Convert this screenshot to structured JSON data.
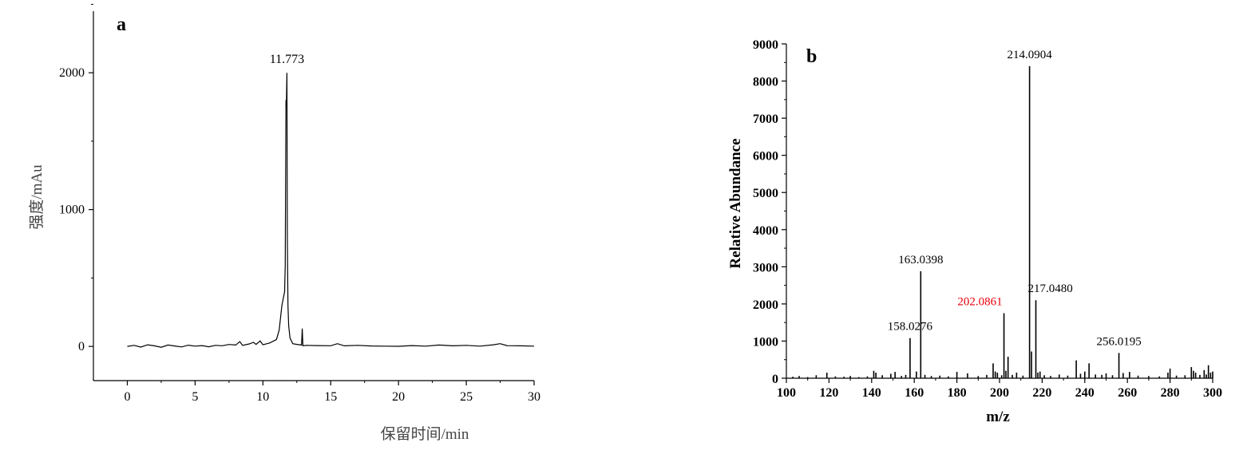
{
  "chart_data": [
    {
      "type": "line",
      "panel_label": "a",
      "xlabel": "保留时间/min",
      "ylabel": "强度/mAu",
      "xlim": [
        -2.5,
        30
      ],
      "ylim": [
        -250,
        2450
      ],
      "xticks": [
        0,
        5,
        10,
        15,
        20,
        25,
        30
      ],
      "xtick_labels": [
        "0",
        "5",
        "10",
        "15",
        "20",
        "25",
        "30"
      ],
      "yticks": [
        0,
        1000,
        2000
      ],
      "ytick_labels": [
        "0",
        "1000",
        "2000"
      ],
      "peak_annotation": {
        "label": "11.773",
        "x": 11.773,
        "y": 2000
      },
      "series": [
        {
          "x": [
            0,
            0.5,
            1,
            1.5,
            2,
            2.5,
            3,
            3.5,
            4,
            4.5,
            5,
            5.5,
            6,
            6.5,
            7,
            7.5,
            8,
            8.3,
            8.5,
            9,
            9.3,
            9.5,
            9.8,
            10,
            10.5,
            11,
            11.2,
            11.4,
            11.5,
            11.6,
            11.65,
            11.7,
            11.73,
            11.773,
            11.8,
            11.85,
            11.9,
            12,
            12.2,
            12.5,
            12.85,
            12.9,
            12.95,
            13.2,
            14,
            15,
            15.5,
            16,
            17,
            18,
            19,
            20,
            21,
            22,
            23,
            24,
            25,
            26,
            27,
            27.5,
            28,
            29,
            30
          ],
          "y": [
            0,
            8,
            -5,
            12,
            4,
            -6,
            10,
            3,
            -4,
            9,
            2,
            6,
            -3,
            8,
            5,
            14,
            10,
            35,
            8,
            18,
            30,
            15,
            40,
            12,
            25,
            50,
            120,
            300,
            350,
            400,
            600,
            1800,
            1750,
            2000,
            800,
            300,
            150,
            60,
            20,
            15,
            10,
            130,
            5,
            8,
            6,
            5,
            20,
            4,
            8,
            3,
            2,
            1,
            6,
            2,
            10,
            4,
            8,
            2,
            12,
            20,
            6,
            4,
            2
          ]
        }
      ]
    },
    {
      "type": "bar",
      "panel_label": "b",
      "xlabel": "m/z",
      "ylabel": "Relative Abundance",
      "xlim": [
        100,
        300
      ],
      "ylim": [
        0,
        9000
      ],
      "xticks": [
        100,
        120,
        140,
        160,
        180,
        200,
        220,
        240,
        260,
        280,
        300
      ],
      "xtick_labels": [
        "100",
        "120",
        "140",
        "160",
        "180",
        "200",
        "220",
        "240",
        "260",
        "280",
        "300"
      ],
      "yticks": [
        0,
        1000,
        2000,
        3000,
        4000,
        5000,
        6000,
        7000,
        8000,
        9000
      ],
      "ytick_labels": [
        "0",
        "1000",
        "2000",
        "3000",
        "4000",
        "5000",
        "6000",
        "7000",
        "8000",
        "9000"
      ],
      "annotations": [
        {
          "label": "214.0904",
          "x": 214.0904,
          "y": 8400,
          "color": "#000000"
        },
        {
          "label": "163.0398",
          "x": 163.0398,
          "y": 2880,
          "color": "#000000"
        },
        {
          "label": "217.0480",
          "x": 217.048,
          "y": 2100,
          "color": "#000000"
        },
        {
          "label": "202.0861",
          "x": 202.0861,
          "y": 1750,
          "color": "#e8000b"
        },
        {
          "label": "158.0276",
          "x": 158.0276,
          "y": 1080,
          "color": "#000000"
        },
        {
          "label": "256.0195",
          "x": 256.0195,
          "y": 680,
          "color": "#000000"
        }
      ],
      "peaks": {
        "x": [
          103,
          106,
          110,
          114,
          119,
          123,
          127,
          130,
          134,
          138,
          141,
          142,
          145,
          149,
          151,
          154,
          156,
          158.0276,
          161,
          163.0398,
          165,
          168,
          172,
          176,
          180,
          185,
          190,
          194,
          197,
          198,
          199,
          201,
          202.0861,
          203,
          204,
          206,
          208,
          211,
          214.0904,
          215,
          217.048,
          218,
          219,
          221,
          224,
          228,
          232,
          236,
          238,
          240,
          242,
          245,
          248,
          250,
          253,
          256.0195,
          258,
          261,
          265,
          270,
          275,
          279,
          280,
          283,
          287,
          290,
          291,
          292,
          294,
          296,
          297,
          298,
          299,
          300
        ],
        "y": [
          40,
          60,
          30,
          80,
          150,
          50,
          40,
          60,
          30,
          50,
          200,
          150,
          80,
          120,
          170,
          60,
          90,
          1080,
          180,
          2880,
          90,
          60,
          70,
          50,
          170,
          130,
          60,
          90,
          400,
          180,
          150,
          80,
          1750,
          200,
          580,
          90,
          150,
          70,
          8400,
          720,
          2100,
          150,
          180,
          80,
          60,
          100,
          70,
          480,
          120,
          180,
          400,
          100,
          90,
          130,
          80,
          680,
          140,
          170,
          70,
          60,
          50,
          150,
          260,
          70,
          80,
          300,
          200,
          150,
          90,
          220,
          100,
          350,
          150,
          180
        ]
      }
    }
  ]
}
